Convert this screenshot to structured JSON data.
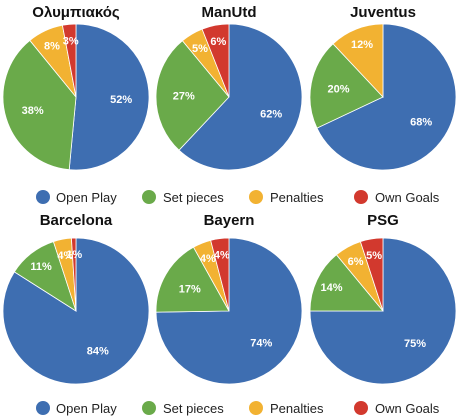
{
  "colors": {
    "open_play": "#3e6eb1",
    "set_pieces": "#6aaa4a",
    "penalties": "#f2b232",
    "own_goals": "#d2392e"
  },
  "legend": {
    "items": [
      {
        "label": "Open Play",
        "color": "#3e6eb1"
      },
      {
        "label": "Set pieces",
        "color": "#6aaa4a"
      },
      {
        "label": "Penalties",
        "color": "#f2b232"
      },
      {
        "label": "Own Goals",
        "color": "#d2392e"
      }
    ]
  },
  "chart_data": [
    {
      "type": "pie",
      "title": "Ολυμπιακός",
      "categories": [
        "Open Play",
        "Set pieces",
        "Penalties",
        "Own Goals"
      ],
      "values": [
        52,
        38,
        8,
        3
      ],
      "labels": [
        "52%",
        "38%",
        "8%",
        "3%"
      ]
    },
    {
      "type": "pie",
      "title": "ManUtd",
      "categories": [
        "Open Play",
        "Set pieces",
        "Penalties",
        "Own Goals"
      ],
      "values": [
        62,
        27,
        5,
        6
      ],
      "labels": [
        "62%",
        "27%",
        "5%",
        "6%"
      ]
    },
    {
      "type": "pie",
      "title": "Juventus",
      "categories": [
        "Open Play",
        "Set pieces",
        "Penalties",
        "Own Goals"
      ],
      "values": [
        68,
        20,
        12,
        0
      ],
      "labels": [
        "68%",
        "20%",
        "12%",
        ""
      ]
    },
    {
      "type": "pie",
      "title": "Barcelona",
      "categories": [
        "Open Play",
        "Set pieces",
        "Penalties",
        "Own Goals"
      ],
      "values": [
        84,
        11,
        4,
        1
      ],
      "labels": [
        "84%",
        "11%",
        "4%",
        "1%"
      ]
    },
    {
      "type": "pie",
      "title": "Bayern",
      "categories": [
        "Open Play",
        "Set pieces",
        "Penalties",
        "Own Goals"
      ],
      "values": [
        74,
        17,
        4,
        4
      ],
      "labels": [
        "74%",
        "17%",
        "4%",
        "4%"
      ]
    },
    {
      "type": "pie",
      "title": "PSG",
      "categories": [
        "Open Play",
        "Set pieces",
        "Penalties",
        "Own Goals"
      ],
      "values": [
        75,
        14,
        6,
        5
      ],
      "labels": [
        "75%",
        "14%",
        "6%",
        "5%"
      ]
    }
  ]
}
